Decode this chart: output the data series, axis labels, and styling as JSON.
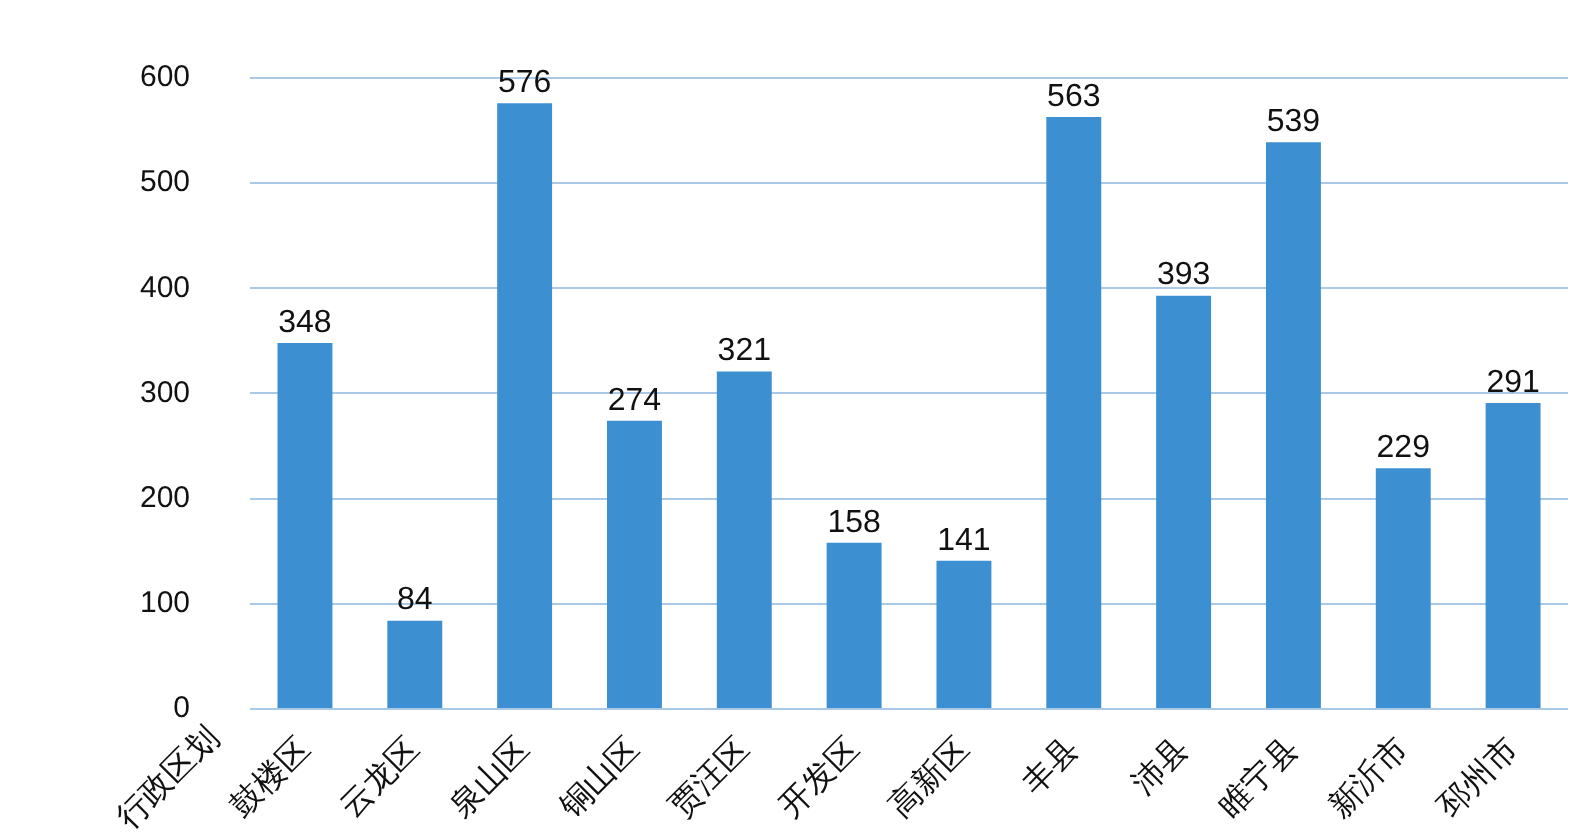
{
  "chart_data": {
    "type": "bar",
    "xlabel": "行政区划",
    "categories": [
      "鼓楼区",
      "云龙区",
      "泉山区",
      "铜山区",
      "贾汪区",
      "开发区",
      "高新区",
      "丰县",
      "沛县",
      "睢宁县",
      "新沂市",
      "邳州市"
    ],
    "values": [
      348,
      84,
      576,
      274,
      321,
      158,
      141,
      563,
      393,
      539,
      229,
      291
    ],
    "color": "#3c8fd0",
    "ylim": [
      0,
      600
    ],
    "yticks": [
      0,
      100,
      200,
      300,
      400,
      500,
      600
    ],
    "grid": "y",
    "data_labels": true,
    "legend": false
  }
}
